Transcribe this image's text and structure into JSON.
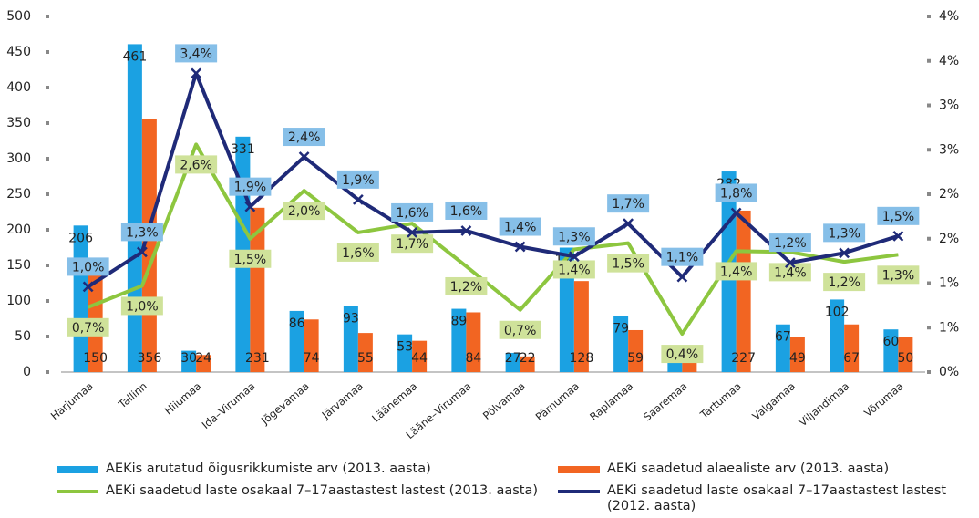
{
  "chart_data": {
    "type": "bar",
    "categories": [
      "Harjumaa",
      "Tallinn",
      "Hiiumaa",
      "Ida–Virumaa",
      "Jõgevamaa",
      "Järvamaa",
      "Läänemaa",
      "Lääne–Virumaa",
      "Põlvamaa",
      "Pärnumaa",
      "Raplamaa",
      "Saaremaa",
      "Tartumaa",
      "Valgamaa",
      "Viljandimaa",
      "Võrumaa"
    ],
    "ylim": [
      0,
      500
    ],
    "yticks": [
      0,
      50,
      100,
      150,
      200,
      250,
      300,
      350,
      400,
      450,
      500
    ],
    "y2lim": [
      0,
      4
    ],
    "y2ticks": [
      {
        "value": 0,
        "label": "0%"
      },
      {
        "value": 0.5,
        "label": "1%"
      },
      {
        "value": 1,
        "label": "1%"
      },
      {
        "value": 1.5,
        "label": "2%"
      },
      {
        "value": 2,
        "label": "2%"
      },
      {
        "value": 2.5,
        "label": "3%"
      },
      {
        "value": 3,
        "label": "3%"
      },
      {
        "value": 3.5,
        "label": "4%"
      },
      {
        "value": 4,
        "label": "4%"
      }
    ],
    "series": [
      {
        "name": "AEKis arutatud õigusrikkumiste arv (2013. aasta)",
        "type": "bar",
        "color": "#1ba1e2",
        "values": [
          206,
          461,
          30,
          331,
          86,
          93,
          53,
          89,
          27,
          175,
          79,
          15,
          282,
          67,
          102,
          60
        ]
      },
      {
        "name": "AEKi saadetud alaealiste arv (2013. aasta)",
        "type": "bar",
        "color": "#f26522",
        "values": [
          150,
          356,
          24,
          231,
          74,
          55,
          44,
          84,
          22,
          128,
          59,
          13,
          227,
          49,
          67,
          50
        ]
      },
      {
        "name": "AEKi saadetud laste osakaal 7–17aastastest lastest (2013. aasta)",
        "type": "line",
        "axis": "y2",
        "color": "#8dc63f",
        "values": [
          0.73,
          0.97,
          2.56,
          1.5,
          2.04,
          1.57,
          1.67,
          1.19,
          0.7,
          1.38,
          1.45,
          0.43,
          1.36,
          1.35,
          1.24,
          1.32
        ],
        "value_labels": [
          "0,7%",
          "1,0%",
          "2,6%",
          "1,5%",
          "2,0%",
          "1,6%",
          "1,7%",
          "1,2%",
          "0,7%",
          "1,4%",
          "1,5%",
          "0,4%",
          "1,4%",
          "1,4%",
          "1,2%",
          "1,3%"
        ]
      },
      {
        "name": "AEKi saadetud laste osakaal 7–17aastastest lastest (2012. aasta)",
        "type": "line",
        "axis": "y2",
        "color": "#1f2a78",
        "values": [
          0.96,
          1.35,
          3.36,
          1.86,
          2.42,
          1.94,
          1.57,
          1.59,
          1.41,
          1.3,
          1.67,
          1.07,
          1.79,
          1.23,
          1.34,
          1.53
        ],
        "value_labels": [
          "1,0%",
          "1,3%",
          "3,4%",
          "1,9%",
          "2,4%",
          "1,9%",
          "1,6%",
          "1,6%",
          "1,4%",
          "1,3%",
          "1,7%",
          "1,1%",
          "1,8%",
          "1,2%",
          "1,3%",
          "1,5%"
        ]
      }
    ]
  }
}
